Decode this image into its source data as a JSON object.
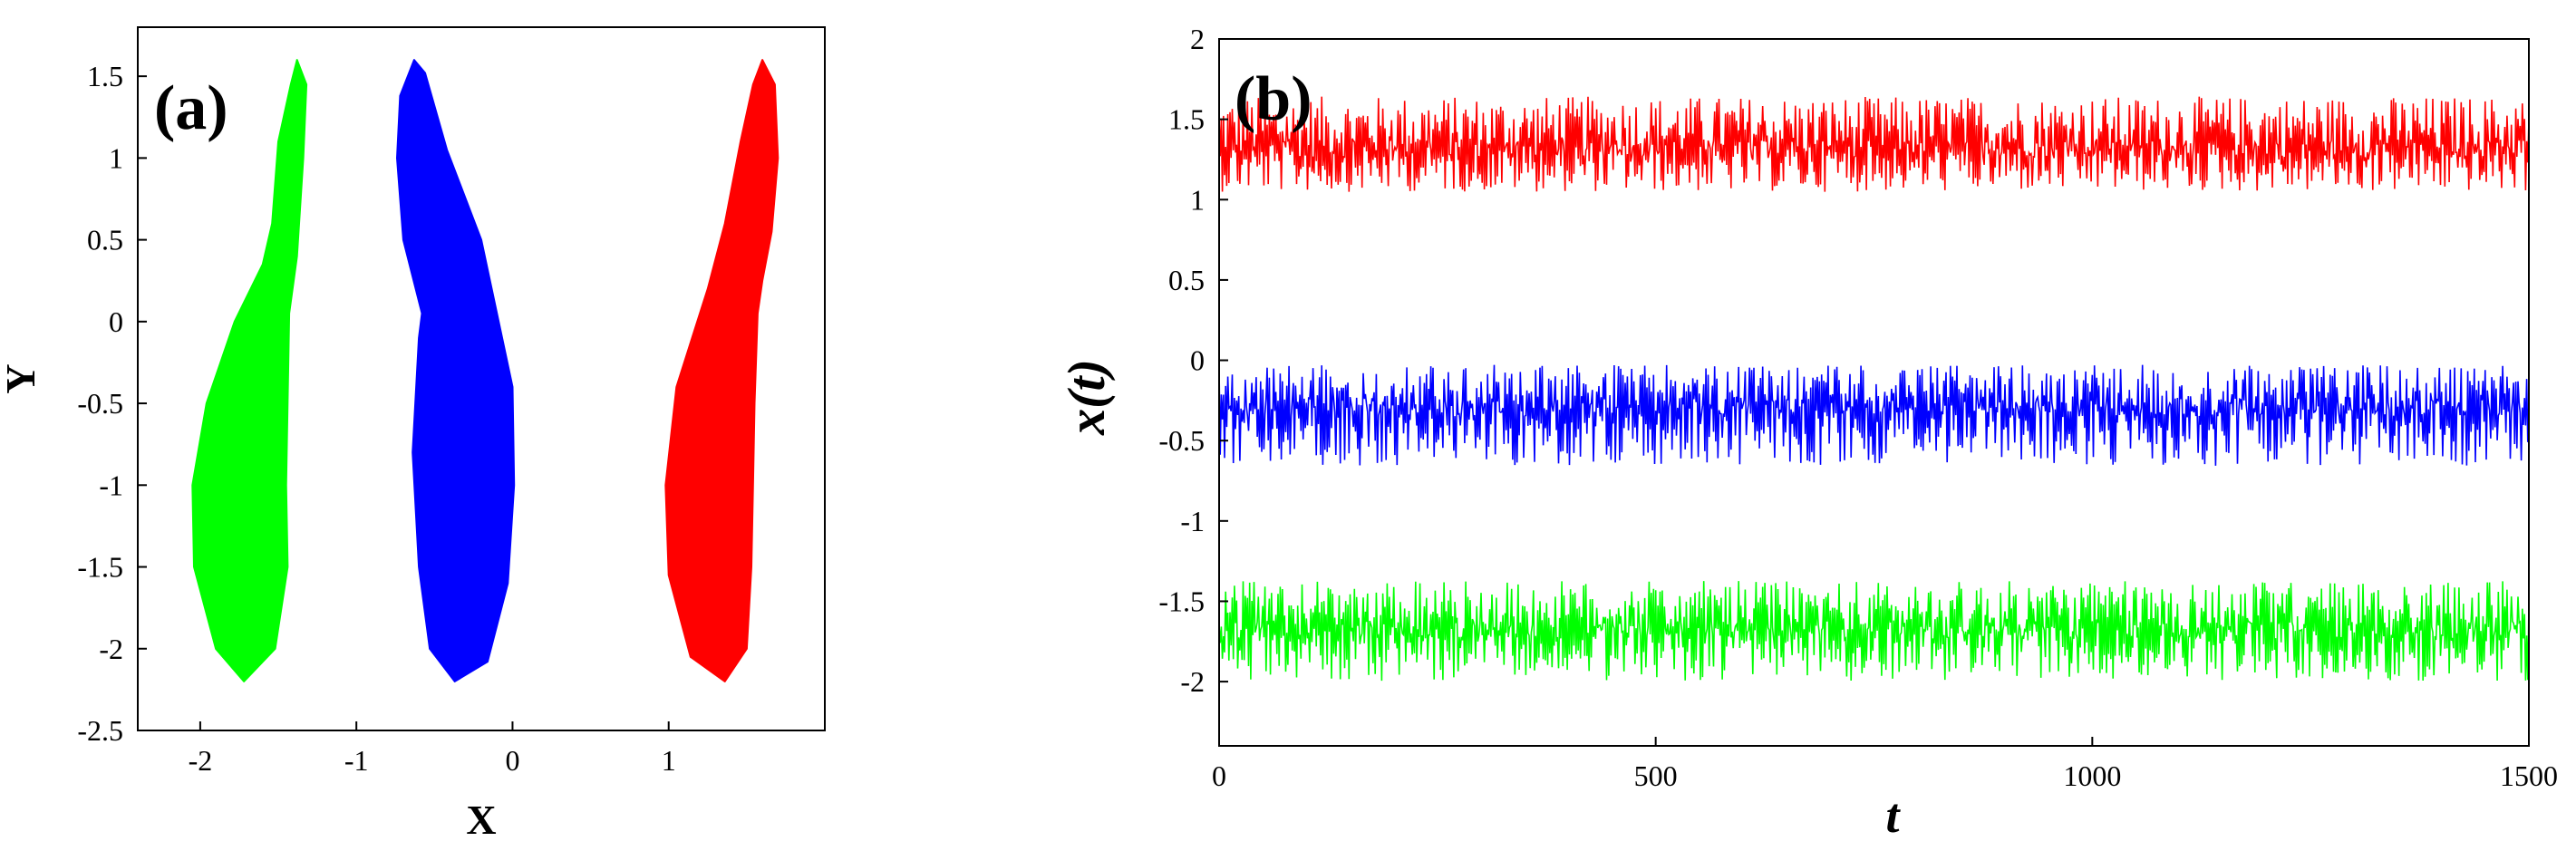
{
  "chart_data": [
    {
      "panel_label": "(a)",
      "type": "scatter",
      "xlabel": "X",
      "ylabel": "Y",
      "xlim": [
        -2.4,
        2.0
      ],
      "ylim": [
        -2.5,
        1.8
      ],
      "xticks": [
        {
          "v": -2,
          "label": "-2"
        },
        {
          "v": -1,
          "label": "-1"
        },
        {
          "v": 0,
          "label": "0"
        },
        {
          "v": 1,
          "label": "1"
        }
      ],
      "yticks": [
        {
          "v": 1.5,
          "label": "1.5"
        },
        {
          "v": 1,
          "label": "1"
        },
        {
          "v": 0.5,
          "label": "0.5"
        },
        {
          "v": 0,
          "label": "0"
        },
        {
          "v": -0.5,
          "label": "-0.5"
        },
        {
          "v": -1,
          "label": "-1"
        },
        {
          "v": -1.5,
          "label": "-1.5"
        },
        {
          "v": -2,
          "label": "-2"
        },
        {
          "v": -2.5,
          "label": "-2.5"
        }
      ],
      "grid": false,
      "series": [
        {
          "color": "#00ff00",
          "points": [
            [
              -1.38,
              1.6
            ],
            [
              -1.42,
              1.45
            ],
            [
              -1.5,
              1.1
            ],
            [
              -1.54,
              0.6
            ],
            [
              -1.6,
              0.35
            ],
            [
              -1.78,
              0.0
            ],
            [
              -1.96,
              -0.5
            ],
            [
              -2.05,
              -1.0
            ],
            [
              -2.04,
              -1.5
            ],
            [
              -1.9,
              -2.0
            ],
            [
              -1.72,
              -2.2
            ],
            [
              -1.52,
              -2.0
            ],
            [
              -1.44,
              -1.5
            ],
            [
              -1.45,
              -1.0
            ],
            [
              -1.43,
              0.05
            ],
            [
              -1.38,
              0.4
            ],
            [
              -1.34,
              1.0
            ],
            [
              -1.32,
              1.45
            ]
          ]
        },
        {
          "color": "#0000ff",
          "points": [
            [
              -0.63,
              1.6
            ],
            [
              -0.56,
              1.52
            ],
            [
              -0.42,
              1.05
            ],
            [
              -0.2,
              0.5
            ],
            [
              0.0,
              -0.4
            ],
            [
              0.01,
              -1.0
            ],
            [
              -0.03,
              -1.6
            ],
            [
              -0.16,
              -2.08
            ],
            [
              -0.37,
              -2.2
            ],
            [
              -0.53,
              -2.0
            ],
            [
              -0.6,
              -1.5
            ],
            [
              -0.64,
              -0.8
            ],
            [
              -0.6,
              -0.1
            ],
            [
              -0.58,
              0.05
            ],
            [
              -0.7,
              0.5
            ],
            [
              -0.74,
              1.0
            ],
            [
              -0.72,
              1.38
            ]
          ]
        },
        {
          "color": "#ff0000",
          "points": [
            [
              1.6,
              1.6
            ],
            [
              1.68,
              1.45
            ],
            [
              1.7,
              1.0
            ],
            [
              1.66,
              0.55
            ],
            [
              1.6,
              0.25
            ],
            [
              1.57,
              0.05
            ],
            [
              1.55,
              -0.5
            ],
            [
              1.54,
              -1.0
            ],
            [
              1.53,
              -1.5
            ],
            [
              1.5,
              -2.0
            ],
            [
              1.36,
              -2.2
            ],
            [
              1.14,
              -2.05
            ],
            [
              1.0,
              -1.55
            ],
            [
              0.98,
              -1.0
            ],
            [
              1.05,
              -0.4
            ],
            [
              1.25,
              0.2
            ],
            [
              1.36,
              0.6
            ],
            [
              1.46,
              1.1
            ],
            [
              1.54,
              1.45
            ]
          ]
        }
      ]
    },
    {
      "panel_label": "(b)",
      "type": "line",
      "xlabel": "t",
      "ylabel": "x(t)",
      "xlim": [
        0,
        1500
      ],
      "ylim": [
        -2.4,
        2.0
      ],
      "xticks": [
        {
          "v": 0,
          "label": "0"
        },
        {
          "v": 500,
          "label": "500"
        },
        {
          "v": 1000,
          "label": "1000"
        },
        {
          "v": 1500,
          "label": "1500"
        }
      ],
      "yticks": [
        {
          "v": 2,
          "label": "2"
        },
        {
          "v": 1.5,
          "label": "1.5"
        },
        {
          "v": 1,
          "label": "1"
        },
        {
          "v": 0.5,
          "label": "0.5"
        },
        {
          "v": 0,
          "label": "0"
        },
        {
          "v": -0.5,
          "label": "-0.5"
        },
        {
          "v": -1,
          "label": "-1"
        },
        {
          "v": -1.5,
          "label": "-1.5"
        },
        {
          "v": -2,
          "label": "-2"
        }
      ],
      "grid": false,
      "series": [
        {
          "color": "#ff0000",
          "min": 1.0,
          "max": 1.7,
          "mean": 1.32
        },
        {
          "color": "#0000ff",
          "min": -0.72,
          "max": 0.02,
          "mean": -0.3
        },
        {
          "color": "#00ff00",
          "min": -2.05,
          "max": -1.32,
          "mean": -1.68
        }
      ]
    }
  ]
}
